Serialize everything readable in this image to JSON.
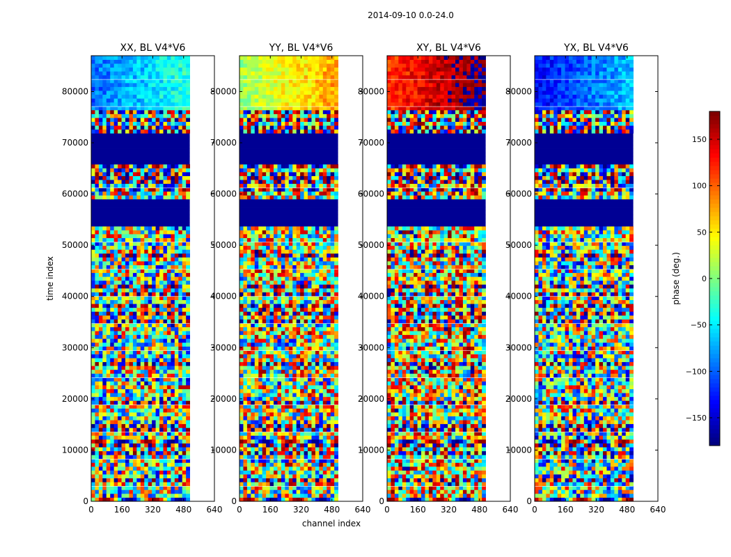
{
  "chart_data": {
    "type": "heatmap",
    "suptitle": "2014-09-10 0.0-24.0",
    "xlabel": "channel index",
    "ylabel": "time index",
    "xlim": [
      0,
      640
    ],
    "ylim": [
      0,
      87000
    ],
    "xticks": [
      0,
      160,
      320,
      480,
      640
    ],
    "yticks": [
      0,
      10000,
      20000,
      30000,
      40000,
      50000,
      60000,
      70000,
      80000
    ],
    "xtick_labels": [
      "0",
      "160",
      "320",
      "480",
      "640"
    ],
    "ytick_labels": [
      "0",
      "10000",
      "20000",
      "30000",
      "40000",
      "50000",
      "60000",
      "70000",
      "80000"
    ],
    "data_channel_extent": [
      0,
      512
    ],
    "panels": [
      {
        "title": "XX, BL V4*V6",
        "bias": -1,
        "hue": 0.15
      },
      {
        "title": "YY, BL V4*V6",
        "bias": 1,
        "hue": 0.45
      },
      {
        "title": "XY, BL V4*V6",
        "bias": -2,
        "hue": 0.75
      },
      {
        "title": "YX, BL V4*V6",
        "bias": 2,
        "hue": 0.05
      }
    ],
    "colorbar": {
      "label": "phase (deg.)",
      "vmin": -180,
      "vmax": 180,
      "ticks": [
        -150,
        -100,
        -50,
        0,
        50,
        100,
        150
      ],
      "tick_labels": [
        "−150",
        "−100",
        "−50",
        "0",
        "50",
        "100",
        "150"
      ],
      "colormap": "jet"
    },
    "blank_time_ranges": [
      [
        54000,
        59000
      ],
      [
        66000,
        72000
      ]
    ],
    "palette": [
      "#00007f",
      "#0000ff",
      "#007fff",
      "#00ffff",
      "#7fff7f",
      "#ffff00",
      "#ff7f00",
      "#ff0000",
      "#7f0000"
    ]
  }
}
